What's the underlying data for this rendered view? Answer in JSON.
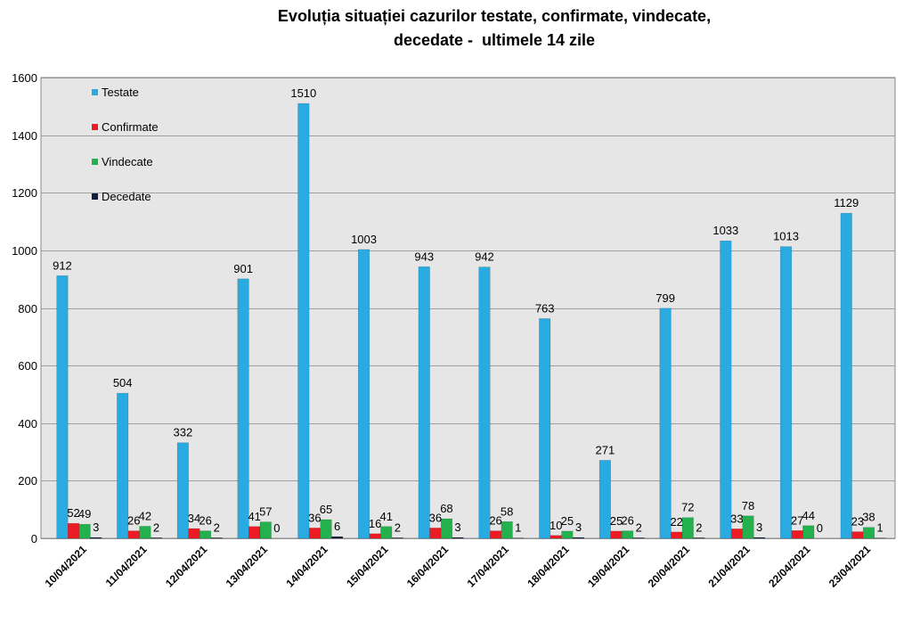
{
  "chart_data": {
    "type": "bar",
    "title_lines": [
      "Evoluția situației cazurilor testate, confirmate, vindecate,",
      "decedate -  ultimele 14 zile"
    ],
    "categories": [
      "10/04/2021",
      "11/04/2021",
      "12/04/2021",
      "13/04/2021",
      "14/04/2021",
      "15/04/2021",
      "16/04/2021",
      "17/04/2021",
      "18/04/2021",
      "19/04/2021",
      "20/04/2021",
      "21/04/2021",
      "22/04/2021",
      "23/04/2021"
    ],
    "series": [
      {
        "name": "Testate",
        "color": "#29ABE2",
        "values": [
          912,
          504,
          332,
          901,
          1510,
          1003,
          943,
          942,
          763,
          271,
          799,
          1033,
          1013,
          1129
        ]
      },
      {
        "name": "Confirmate",
        "color": "#ED1C24",
        "values": [
          52,
          26,
          34,
          41,
          36,
          16,
          36,
          26,
          10,
          25,
          22,
          33,
          27,
          23
        ]
      },
      {
        "name": "Vindecate",
        "color": "#22B14C",
        "values": [
          49,
          42,
          26,
          57,
          65,
          41,
          68,
          58,
          25,
          26,
          72,
          78,
          44,
          38
        ]
      },
      {
        "name": "Decedate",
        "color": "#0F1E3D",
        "values": [
          3,
          2,
          2,
          0,
          6,
          2,
          3,
          1,
          3,
          2,
          2,
          3,
          0,
          1
        ]
      }
    ],
    "ylim": [
      0,
      1600
    ],
    "yticks": [
      0,
      200,
      400,
      600,
      800,
      1000,
      1200,
      1400,
      1600
    ],
    "grid": true,
    "legend_position": "top-left",
    "plot_background": "#E6E6E6"
  }
}
